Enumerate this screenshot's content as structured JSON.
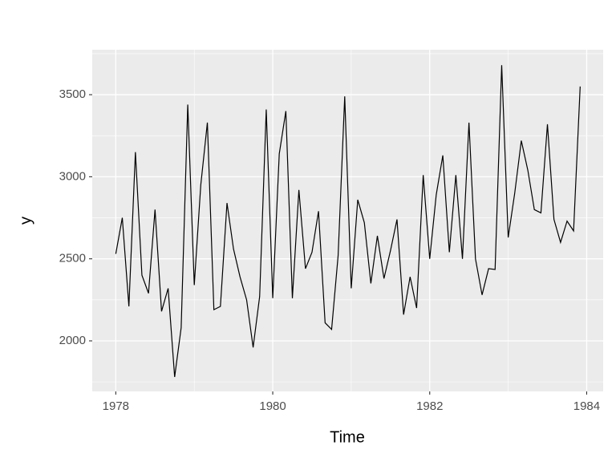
{
  "chart_data": {
    "type": "line",
    "x_label": "Time",
    "y_label": "y",
    "x": [
      1978,
      1978.083,
      1978.167,
      1978.25,
      1978.333,
      1978.417,
      1978.5,
      1978.583,
      1978.667,
      1978.75,
      1978.833,
      1978.917,
      1979,
      1979.083,
      1979.167,
      1979.25,
      1979.333,
      1979.417,
      1979.5,
      1979.583,
      1979.667,
      1979.75,
      1979.833,
      1979.917,
      1980,
      1980.083,
      1980.167,
      1980.25,
      1980.333,
      1980.417,
      1980.5,
      1980.583,
      1980.667,
      1980.75,
      1980.833,
      1980.917,
      1981,
      1981.083,
      1981.167,
      1981.25,
      1981.333,
      1981.417,
      1981.5,
      1981.583,
      1981.667,
      1981.75,
      1981.833,
      1981.917,
      1982,
      1982.083,
      1982.167,
      1982.25,
      1982.333,
      1982.417,
      1982.5,
      1982.583,
      1982.667,
      1982.75,
      1982.833,
      1982.917,
      1983,
      1983.083,
      1983.167,
      1983.25,
      1983.333,
      1983.417,
      1983.5,
      1983.583,
      1983.667,
      1983.75,
      1983.833,
      1983.917
    ],
    "values": [
      2530,
      2750,
      2210,
      3150,
      2400,
      2290,
      2800,
      2180,
      2320,
      1780,
      2080,
      3440,
      2340,
      2950,
      3330,
      2190,
      2210,
      2840,
      2560,
      2390,
      2250,
      1960,
      2270,
      3410,
      2260,
      3140,
      3400,
      2260,
      2920,
      2440,
      2540,
      2790,
      2110,
      2070,
      2520,
      3490,
      2320,
      2860,
      2720,
      2350,
      2640,
      2380,
      2550,
      2740,
      2160,
      2390,
      2200,
      3010,
      2500,
      2890,
      3130,
      2540,
      3010,
      2500,
      3330,
      2500,
      2280,
      2440,
      2435,
      3680,
      2630,
      2900,
      3220,
      3040,
      2800,
      2780,
      3320,
      2740,
      2600,
      2730,
      2670,
      3550
    ],
    "color": "#000000",
    "xlim": [
      1977.7,
      1984.21
    ],
    "ylim": [
      1692,
      3774
    ],
    "xticks": [
      1978,
      1980,
      1982,
      1984
    ],
    "yticks": [
      2000,
      2500,
      3000,
      3500
    ],
    "grid": true
  }
}
